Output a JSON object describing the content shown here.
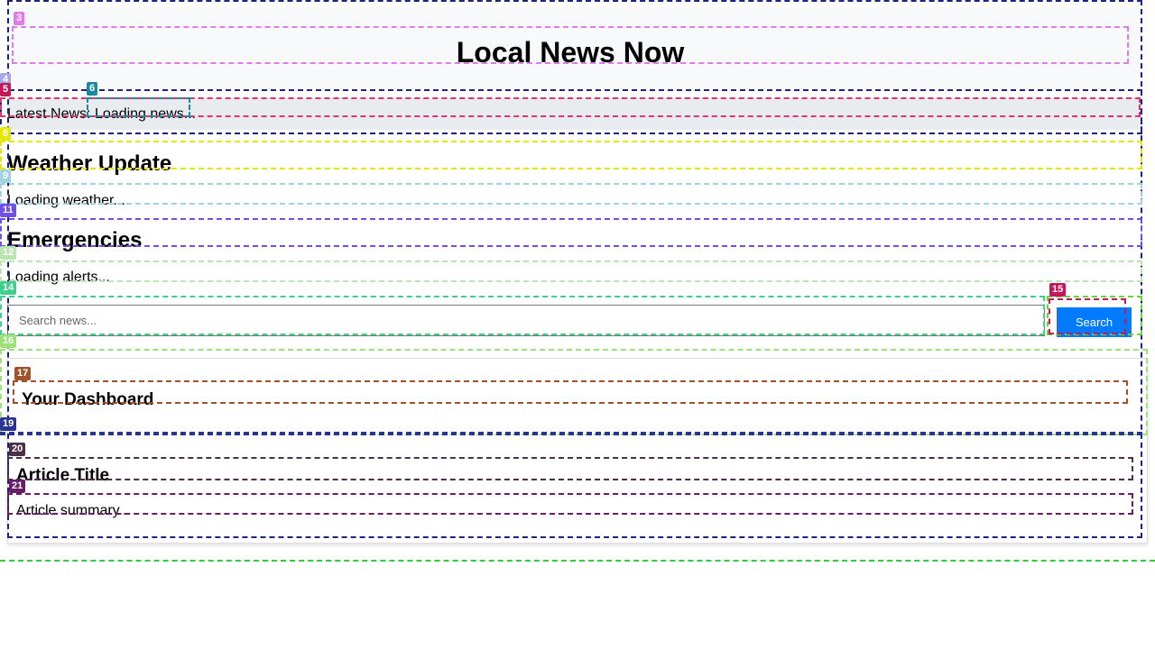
{
  "header": {
    "title": "Local News Now"
  },
  "ticker": {
    "label": "Latest News:",
    "text": "Loading news..."
  },
  "weather": {
    "heading": "Weather Update",
    "status": "Loading weather..."
  },
  "emergencies": {
    "heading": "Emergencies",
    "status": "Loading alerts..."
  },
  "search": {
    "placeholder": "Search news...",
    "button_label": "Search"
  },
  "dashboard": {
    "heading": "Your Dashboard",
    "article": {
      "title": "Article Title",
      "summary": "Article summary..."
    }
  },
  "overlay_labels": [
    "3",
    "4",
    "5",
    "6",
    "8",
    "9",
    "11",
    "12",
    "14",
    "15",
    "16",
    "17",
    "19",
    "20",
    "21"
  ],
  "colors": {
    "accent": "#007bff",
    "header_bg": "#f8f9fa",
    "ticker_bg": "#e9ecef"
  }
}
